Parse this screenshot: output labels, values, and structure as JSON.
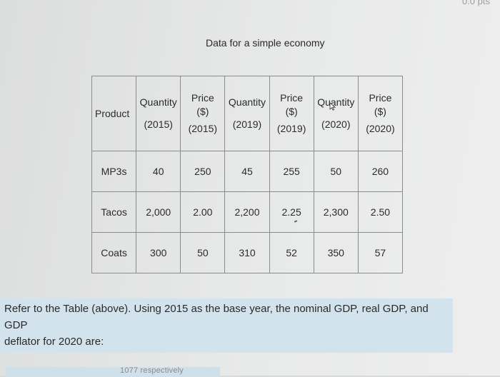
{
  "header": {
    "points_label": "0.0 pts"
  },
  "table": {
    "title": "Data for a simple economy",
    "columns": [
      {
        "lines": [
          "Product"
        ]
      },
      {
        "lines": [
          "Quantity",
          "(2015)"
        ]
      },
      {
        "lines": [
          "Price",
          "($)",
          "(2015)"
        ]
      },
      {
        "lines": [
          "Quantity",
          "(2019)"
        ]
      },
      {
        "lines": [
          "Price",
          "($)",
          "(2019)"
        ]
      },
      {
        "lines": [
          "Quantity",
          "(2020)"
        ]
      },
      {
        "lines": [
          "Price",
          "($)",
          "(2020)"
        ]
      }
    ],
    "rows": [
      [
        "MP3s",
        "40",
        "250",
        "45",
        "255",
        "50",
        "260"
      ],
      [
        "Tacos",
        "2,000",
        "2.00",
        "2,200",
        "2.25",
        "2,300",
        "2.50"
      ],
      [
        "Coats",
        "300",
        "50",
        "310",
        "52",
        "350",
        "57"
      ]
    ]
  },
  "question": {
    "line1": "Refer to the Table (above). Using 2015 as the base year, the nominal GDP, real GDP, and GDP",
    "line2": "deflator for 2020 are:"
  },
  "answer_preview": {
    "text": "1077 respectively"
  },
  "colors": {
    "highlight": "#d2e3ee",
    "table_border": "#8a8c8e",
    "page_background": "#e6e7e7"
  },
  "icons": {
    "cursor": "arrow-cursor-icon"
  }
}
